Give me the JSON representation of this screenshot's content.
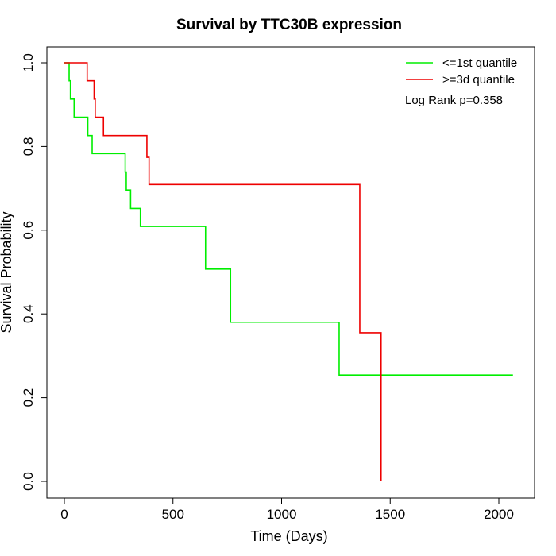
{
  "chart_data": {
    "type": "line",
    "title": "Survival by TTC30B expression",
    "xlabel": "Time (Days)",
    "ylabel": "Survival Probability",
    "xlim": [
      0,
      2070
    ],
    "ylim": [
      0,
      1
    ],
    "x_ticks": [
      0,
      500,
      1000,
      1500,
      2000
    ],
    "x_tick_labels": [
      "0",
      "500",
      "1000",
      "1500",
      "2000"
    ],
    "y_ticks": [
      0,
      0.2,
      0.4,
      0.6,
      0.8,
      1.0
    ],
    "y_tick_labels": [
      "0.0",
      "0.2",
      "0.4",
      "0.6",
      "0.8",
      "1.0"
    ],
    "grid": false,
    "legend_position": "top-right",
    "annotation": "Log Rank p=0.358",
    "series": [
      {
        "name": "<=1st quantile",
        "color": "#00ee00",
        "steps": [
          [
            0,
            1.0
          ],
          [
            22,
            0.957
          ],
          [
            28,
            0.913
          ],
          [
            45,
            0.87
          ],
          [
            108,
            0.826
          ],
          [
            128,
            0.783
          ],
          [
            280,
            0.739
          ],
          [
            285,
            0.696
          ],
          [
            305,
            0.652
          ],
          [
            350,
            0.609
          ],
          [
            650,
            0.507
          ],
          [
            765,
            0.38
          ],
          [
            1265,
            0.254
          ],
          [
            2065,
            0.254
          ]
        ]
      },
      {
        "name": ">=3d quantile",
        "color": "#ee0000",
        "steps": [
          [
            0,
            1.0
          ],
          [
            105,
            0.957
          ],
          [
            137,
            0.913
          ],
          [
            142,
            0.87
          ],
          [
            180,
            0.826
          ],
          [
            380,
            0.774
          ],
          [
            390,
            0.709
          ],
          [
            1360,
            0.355
          ],
          [
            1458,
            0.0
          ]
        ]
      }
    ]
  }
}
